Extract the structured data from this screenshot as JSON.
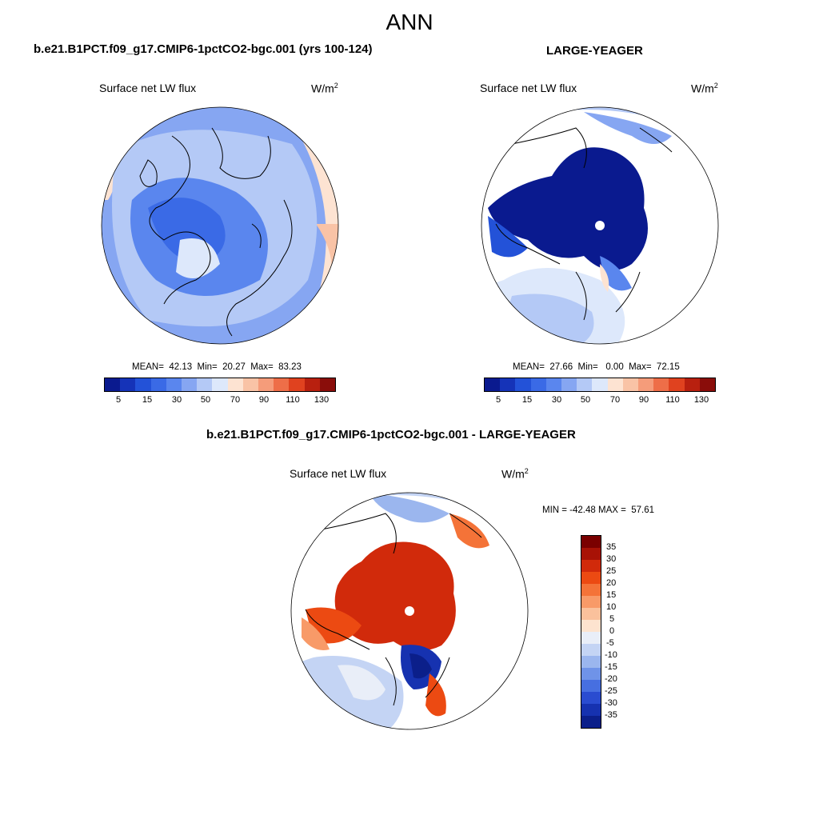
{
  "main_title": "ANN",
  "panels": [
    {
      "title": "b.e21.B1PCT.f09_g17.CMIP6-1pctCO2-bgc.001 (yrs 100-124)",
      "var_label": "Surface net LW flux",
      "units_base": "W/m",
      "units_exp": "2",
      "stats": "MEAN=  42.13  Min=  20.27  Max=  83.23",
      "colorbar_ticks": [
        "5",
        "15",
        "30",
        "50",
        "70",
        "90",
        "110",
        "130"
      ]
    },
    {
      "title": "LARGE-YEAGER",
      "var_label": "Surface net LW flux",
      "units_base": "W/m",
      "units_exp": "2",
      "stats": "MEAN=  27.66  Min=   0.00  Max=  72.15",
      "colorbar_ticks": [
        "5",
        "15",
        "30",
        "50",
        "70",
        "90",
        "110",
        "130"
      ]
    },
    {
      "title": "b.e21.B1PCT.f09_g17.CMIP6-1pctCO2-bgc.001 - LARGE-YEAGER",
      "var_label": "Surface net LW flux",
      "units_base": "W/m",
      "units_exp": "2",
      "stats": "MIN = -42.48 MAX =  57.61",
      "colorbar_labels": [
        "35",
        "30",
        "25",
        "20",
        "15",
        "10",
        "5",
        "0",
        "-5",
        "-10",
        "-15",
        "-20",
        "-25",
        "-30",
        "-35"
      ]
    }
  ],
  "colors": {
    "abs_palette": [
      "#0a1a8f",
      "#1533b8",
      "#2352d8",
      "#3a6ae6",
      "#5a86ee",
      "#86a6f2",
      "#b4c9f6",
      "#dde8fb",
      "#fde3d2",
      "#f9c3a6",
      "#f59c7a",
      "#ee6e48",
      "#e0421f",
      "#b8200f",
      "#8a0d0a"
    ],
    "diff_palette": [
      "#7a0000",
      "#a81206",
      "#d12a0b",
      "#ec4a12",
      "#f47338",
      "#f89a68",
      "#fac19c",
      "#fde3cf",
      "#e9eef8",
      "#c4d4f4",
      "#9bb6ee",
      "#6f93e8",
      "#476fe0",
      "#2a4cd0",
      "#1632b0",
      "#0b1f8a"
    ],
    "land": "#ffffff",
    "coast": "#000000"
  }
}
